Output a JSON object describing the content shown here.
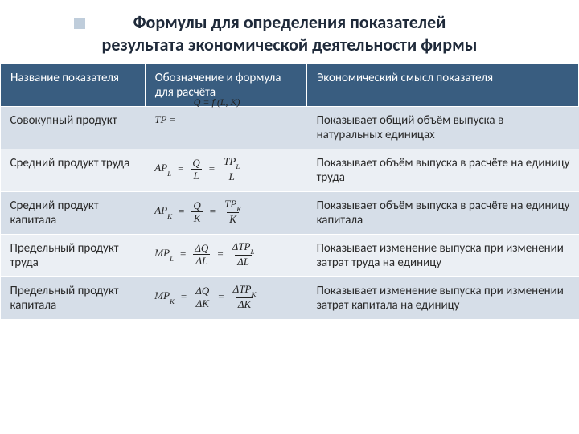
{
  "title_line1": "Формулы для определения показателей",
  "title_line2": "результата экономической деятельности фирмы",
  "title_fontsize": 22,
  "colors": {
    "header_bg": "#395d80",
    "header_text": "#ffffff",
    "row_odd": "#d6dee8",
    "row_even": "#ebeff4",
    "title_color": "#1f2a3a",
    "deco": "#bfcddb"
  },
  "col_widths": [
    "25%",
    "28%",
    "47%"
  ],
  "headers": {
    "c1": "Название показателя",
    "c2": "Обозначение и формула для расчёта",
    "c3": "Экономический смысл показателя"
  },
  "rows": [
    {
      "name": "Совокупный продукт",
      "formula_text": "TP =",
      "formula_overlay": "Q = f (L, K)",
      "meaning": "Показывает общий объём выпуска в натуральных единицах"
    },
    {
      "name": "Средний продукт труда",
      "formula_prefix": "AP",
      "formula_sub": "L",
      "frac1_num": "Q",
      "frac1_den": "L",
      "frac2_num": "TP",
      "frac2_num_sub": "L",
      "frac2_den": "L",
      "meaning": "Показывает объём выпуска в расчёте на единицу труда"
    },
    {
      "name": "Средний продукт капитала",
      "formula_prefix": "AP",
      "formula_sub": "K",
      "frac1_num": "Q",
      "frac1_den": "K",
      "frac2_num": "TP",
      "frac2_num_sub": "K",
      "frac2_den": "K",
      "meaning": "Показывает объём выпуска в расчёте на единицу капитала"
    },
    {
      "name": "Предельный продукт труда",
      "formula_prefix": "MP",
      "formula_sub": "L",
      "frac1_num": "ΔQ",
      "frac1_den": "ΔL",
      "frac2_num": "ΔTP",
      "frac2_num_sub": "L",
      "frac2_den": "ΔL",
      "meaning": "Показывает изменение выпуска при изменении затрат труда на единицу"
    },
    {
      "name": "Предельный продукт капитала",
      "formula_prefix": "MP",
      "formula_sub": "K",
      "frac1_num": "ΔQ",
      "frac1_den": "ΔK",
      "frac2_num": "ΔTP",
      "frac2_num_sub": "K",
      "frac2_den": "ΔK",
      "meaning": "Показывает изменение выпуска при изменении затрат капитала на единицу"
    }
  ],
  "body_fontsize": 15,
  "formula_fontsize": 13
}
